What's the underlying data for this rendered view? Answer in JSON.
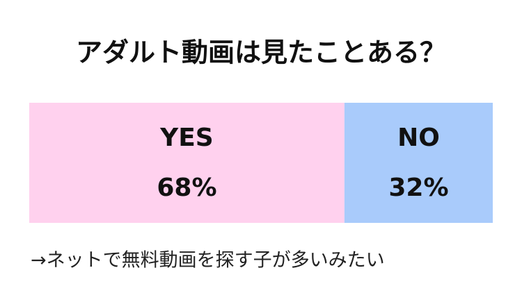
{
  "chart_data": {
    "type": "stacked-bar",
    "title": "アダルト動画は見たことある？",
    "series": [
      {
        "name": "YES",
        "color": "#ffd1ee",
        "values": [
          68
        ],
        "value_labels": [
          "68%"
        ]
      },
      {
        "name": "NO",
        "color": "#a9cbfb",
        "values": [
          32
        ],
        "value_labels": [
          "32%"
        ]
      }
    ],
    "annotation": "→ネットで無料動画を探す子が多いみたい"
  }
}
